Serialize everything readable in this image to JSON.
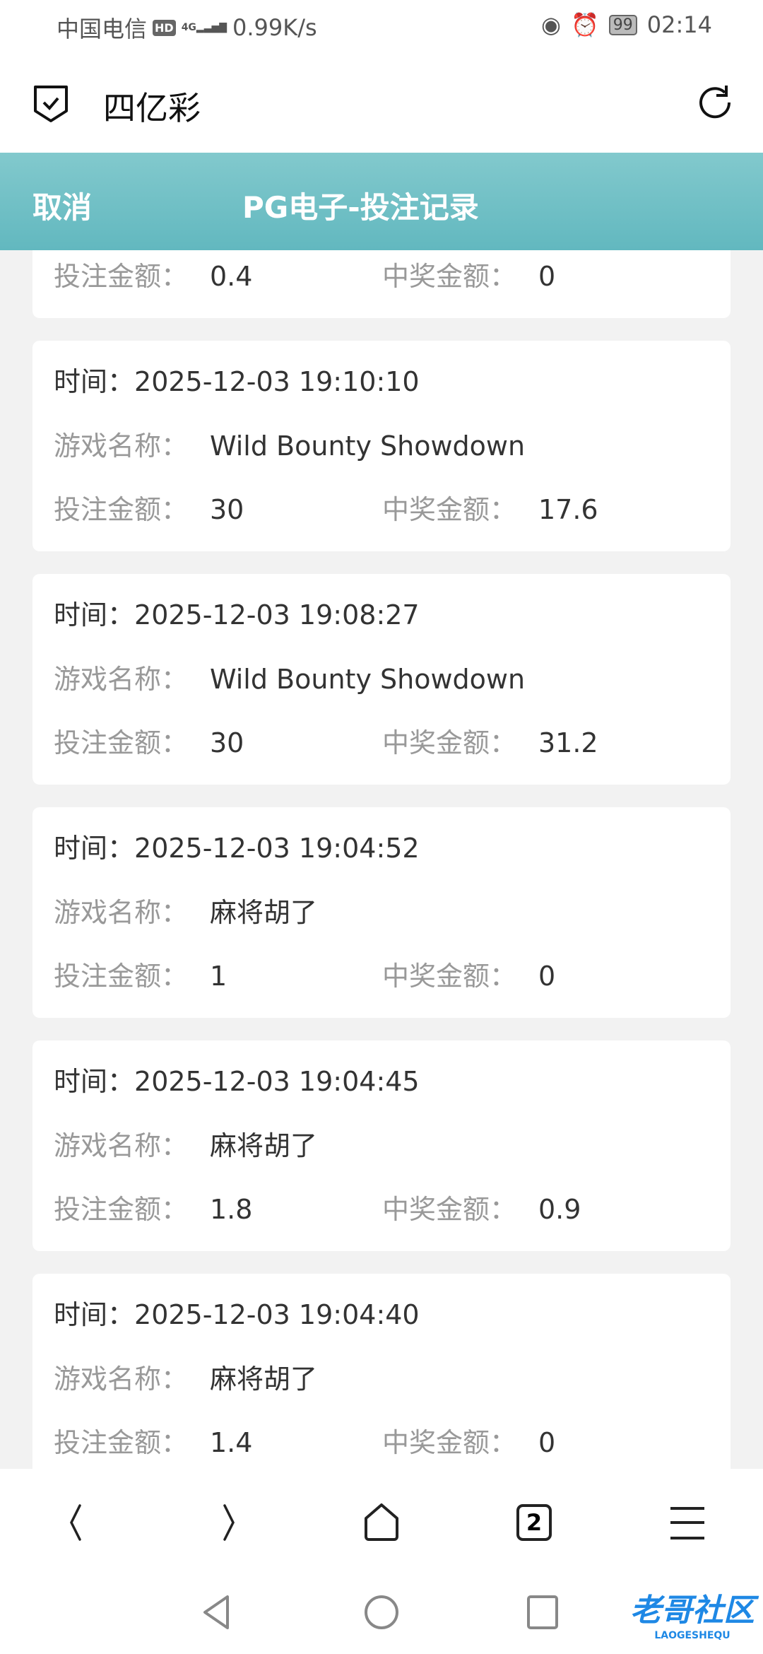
{
  "status_bar": {
    "carrier": "中国电信",
    "hd": "HD",
    "network": "4G",
    "speed": "0.99K/s",
    "battery": "99",
    "time": "02:14"
  },
  "browser": {
    "site_title": "四亿彩",
    "tabs_count": "2"
  },
  "header": {
    "cancel": "取消",
    "title": "PG电子-投注记录"
  },
  "labels": {
    "time": "时间：",
    "game": "游戏名称：",
    "bet": "投注金额：",
    "win": "中奖金额："
  },
  "partial_record": {
    "bet": "0.4",
    "win": "0"
  },
  "records": [
    {
      "time": "2025-12-03 19:10:10",
      "game": "Wild Bounty Showdown",
      "bet": "30",
      "win": "17.6"
    },
    {
      "time": "2025-12-03 19:08:27",
      "game": "Wild Bounty Showdown",
      "bet": "30",
      "win": "31.2"
    },
    {
      "time": "2025-12-03 19:04:52",
      "game": "麻将胡了",
      "bet": "1",
      "win": "0"
    },
    {
      "time": "2025-12-03 19:04:45",
      "game": "麻将胡了",
      "bet": "1.8",
      "win": "0.9"
    },
    {
      "time": "2025-12-03 19:04:40",
      "game": "麻将胡了",
      "bet": "1.4",
      "win": "0"
    }
  ],
  "watermark": {
    "text": "老哥社区",
    "sub": "LAOGESHEQU"
  },
  "colors": {
    "header_top": "#82c9cd",
    "header_bottom": "#62b8bf",
    "watermark": "#1e88e5"
  }
}
